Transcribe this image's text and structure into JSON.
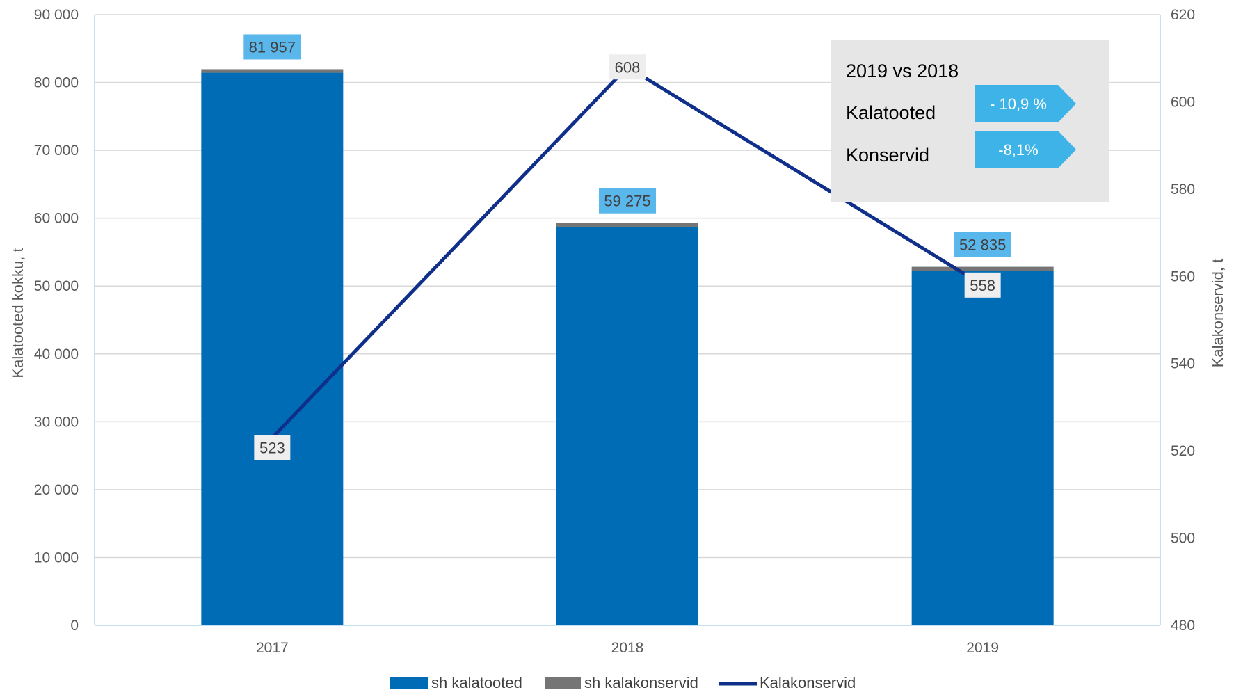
{
  "colors": {
    "bar_main": "#006cb6",
    "bar_top": "#757575",
    "line": "#0f2f8a",
    "bar_label_bg": "#5ab7ec",
    "line_label_bg": "#eeeeee",
    "grid": "#d9d9d9",
    "axis": "#c5e0f3",
    "box_bg": "#e6e6e6",
    "pill_bg": "#3db3e8"
  },
  "chart_data": {
    "type": "bar",
    "categories": [
      "2017",
      "2018",
      "2019"
    ],
    "ylabel": "Kalatooted kokku, t",
    "y2label": "Kalakonservid, t",
    "ylim": [
      0,
      90000
    ],
    "y2lim": [
      480,
      620
    ],
    "yticks": [
      "0",
      "10 000",
      "20 000",
      "30 000",
      "40 000",
      "50 000",
      "60 000",
      "70 000",
      "80 000",
      "90 000"
    ],
    "y2ticks": [
      "480",
      "500",
      "520",
      "540",
      "560",
      "580",
      "600",
      "620"
    ],
    "grid": true,
    "legend_position": "bottom",
    "series": [
      {
        "name": "sh kalatooted",
        "kind": "bar",
        "axis": "left",
        "values": [
          81434,
          58667,
          52277
        ]
      },
      {
        "name": "sh kalakonservid",
        "kind": "bar",
        "axis": "left",
        "values": [
          523,
          608,
          558
        ]
      },
      {
        "name": "Kalakonservid",
        "kind": "line",
        "axis": "right",
        "values": [
          523,
          608,
          558
        ]
      }
    ],
    "bar_total_labels": [
      "81 957",
      "59 275",
      "52 835"
    ],
    "line_labels": [
      "523",
      "608",
      "558"
    ]
  },
  "annotation": {
    "title": "2019 vs 2018",
    "rows": [
      {
        "label": "Kalatooted",
        "value": "- 10,9 %"
      },
      {
        "label": "Konservid",
        "value": "-8,1%"
      }
    ]
  }
}
